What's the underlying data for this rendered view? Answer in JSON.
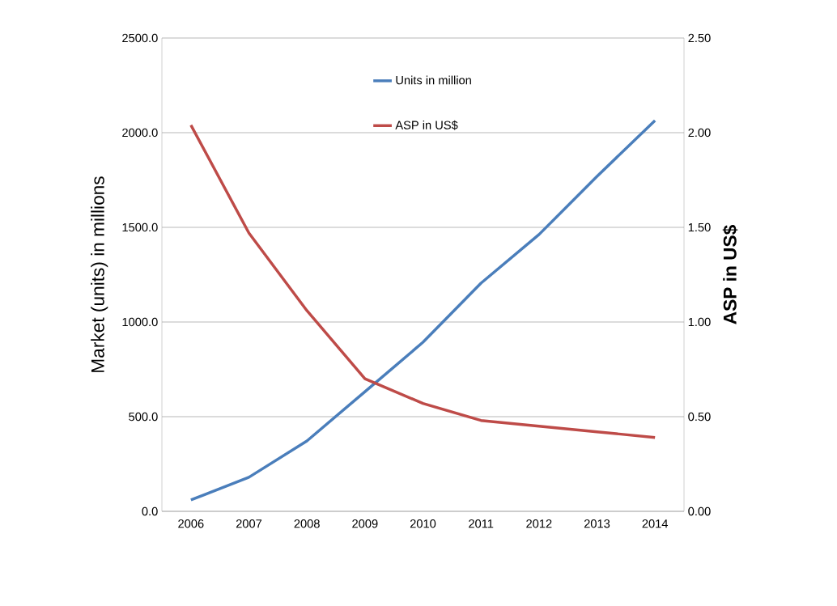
{
  "chart_data": {
    "type": "line",
    "categories": [
      "2006",
      "2007",
      "2008",
      "2009",
      "2010",
      "2011",
      "2012",
      "2013",
      "2014"
    ],
    "series": [
      {
        "name": "Units in million",
        "color": "#4a7ebb",
        "values": [
          60,
          180,
          372,
          632,
          893,
          1205,
          1462,
          1769,
          2064
        ]
      },
      {
        "name": "ASP in US$",
        "color": "#be4b48",
        "axis": "y2",
        "values": [
          2.04,
          1.47,
          1.06,
          0.7,
          0.57,
          0.48,
          0.45,
          0.42,
          0.39
        ]
      }
    ],
    "ylabel": "Market (units) in millions",
    "y2label": "ASP in US$",
    "ylim": [
      0,
      2500
    ],
    "yticks": [
      {
        "value": 0,
        "label": "0.0"
      },
      {
        "value": 500,
        "label": "500.0"
      },
      {
        "value": 1000,
        "label": "1000.0"
      },
      {
        "value": 1500,
        "label": "1500.0"
      },
      {
        "value": 2000,
        "label": "2000.0"
      },
      {
        "value": 2500,
        "label": "2500.0"
      }
    ],
    "y2lim": [
      0,
      2.5
    ],
    "y2ticks": [
      {
        "value": 0,
        "label": "0.00"
      },
      {
        "value": 0.5,
        "label": "0.50"
      },
      {
        "value": 1,
        "label": "1.00"
      },
      {
        "value": 1.5,
        "label": "1.50"
      },
      {
        "value": 2,
        "label": "2.00"
      },
      {
        "value": 2.5,
        "label": "2.50"
      }
    ],
    "grid": "y",
    "legend": "top"
  }
}
